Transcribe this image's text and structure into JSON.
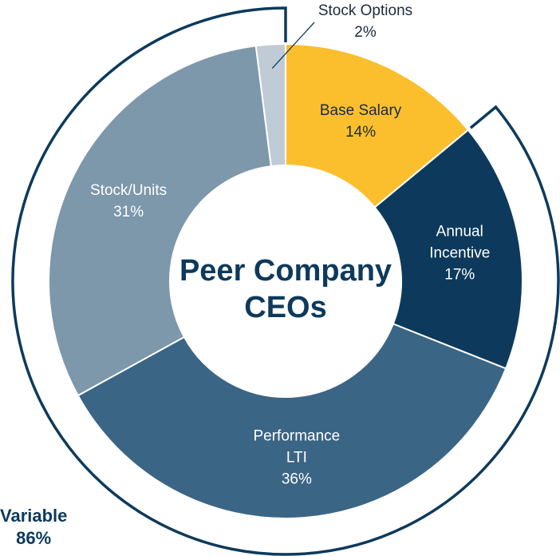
{
  "chart_data": {
    "type": "donut",
    "title": "Peer Company CEOs",
    "categories": [
      "Base Salary",
      "Annual Incentive",
      "Performance LTI",
      "Stock/Units",
      "Stock Options"
    ],
    "values": [
      14,
      17,
      36,
      31,
      2
    ],
    "value_labels": [
      "14%",
      "17%",
      "36%",
      "31%",
      "2%"
    ],
    "colors": [
      "#fbbf2e",
      "#0d3a5c",
      "#3b6585",
      "#7d97ab",
      "#c0cbd6"
    ],
    "variable": {
      "label": "Variable",
      "value": 86,
      "value_label": "86%"
    }
  }
}
